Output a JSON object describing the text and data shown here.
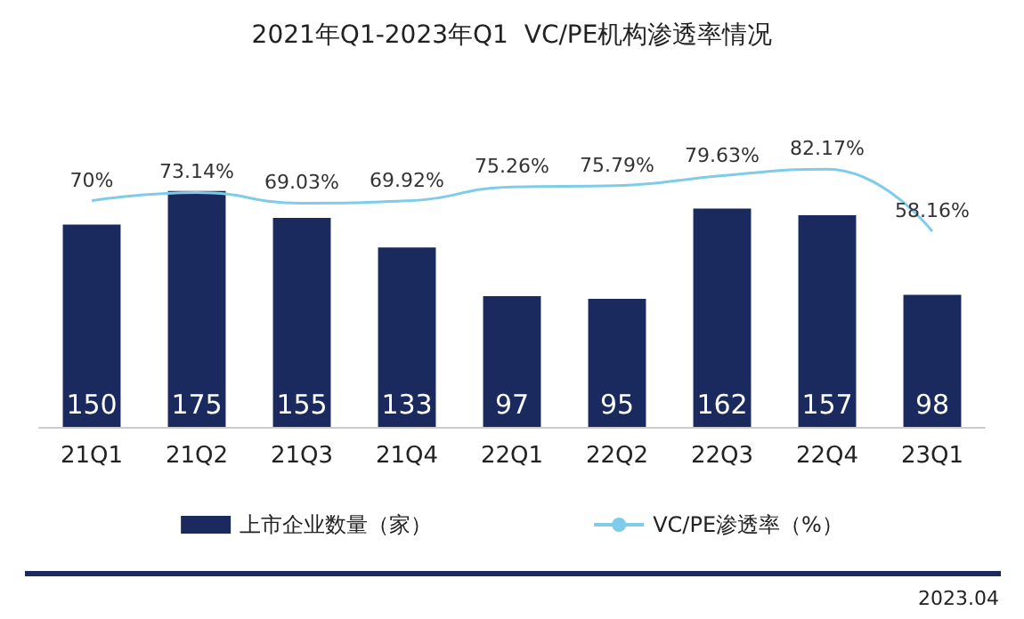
{
  "chart_data": {
    "type": "bar",
    "title": "2021年Q1-2023年Q1  VC/PE机构渗透率情况",
    "categories": [
      "21Q1",
      "21Q2",
      "21Q3",
      "21Q4",
      "22Q1",
      "22Q2",
      "22Q3",
      "22Q4",
      "23Q1"
    ],
    "series": [
      {
        "name": "上市企业数量（家）",
        "color": "#1b2a5e",
        "values": [
          150,
          175,
          155,
          133,
          97,
          95,
          162,
          157,
          98
        ],
        "value_labels": [
          "150",
          "175",
          "155",
          "133",
          "97",
          "95",
          "162",
          "157",
          "98"
        ]
      },
      {
        "name": "VC/PE渗透率（%）",
        "type": "line",
        "axis": "y2",
        "color": "#7ecbea",
        "values": [
          70,
          73.14,
          69.03,
          69.92,
          75.26,
          75.79,
          79.63,
          82.17,
          58.16
        ],
        "value_labels": [
          "70%",
          "73.14%",
          "69.03%",
          "69.92%",
          "75.26%",
          "75.79%",
          "79.63%",
          "82.17%",
          "58.16%"
        ]
      }
    ],
    "tick_labels": "x",
    "grid": false,
    "legend": "bottom",
    "marker": "none",
    "line_style": "solid",
    "annotations": [
      "2023.04"
    ]
  }
}
